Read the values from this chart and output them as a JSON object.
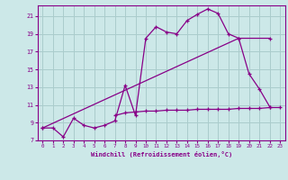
{
  "background_color": "#cce8e8",
  "grid_color": "#aacccc",
  "line_color": "#880088",
  "xlabel": "Windchill (Refroidissement éolien,°C)",
  "xlim": [
    -0.5,
    23.5
  ],
  "ylim": [
    7,
    22.2
  ],
  "yticks": [
    7,
    9,
    11,
    13,
    15,
    17,
    19,
    21
  ],
  "xticks": [
    0,
    1,
    2,
    3,
    4,
    5,
    6,
    7,
    8,
    9,
    10,
    11,
    12,
    13,
    14,
    15,
    16,
    17,
    18,
    19,
    20,
    21,
    22,
    23
  ],
  "curve1_x": [
    0,
    1,
    2,
    3,
    4,
    5,
    6,
    7,
    8,
    9,
    10,
    11,
    12,
    13,
    14,
    15,
    16,
    17,
    18,
    19,
    20,
    21,
    22
  ],
  "curve1_y": [
    8.4,
    8.4,
    7.4,
    9.5,
    8.7,
    8.4,
    8.7,
    9.2,
    13.2,
    9.8,
    18.5,
    19.8,
    19.2,
    19.0,
    20.5,
    21.2,
    21.8,
    21.3,
    19.0,
    18.5,
    14.5,
    12.8,
    10.8
  ],
  "curve2_x": [
    0,
    19,
    22
  ],
  "curve2_y": [
    8.4,
    18.5,
    18.5
  ],
  "curve3_x": [
    7,
    8,
    9,
    10,
    11,
    12,
    13,
    14,
    15,
    16,
    17,
    18,
    19,
    20,
    21,
    22,
    23
  ],
  "curve3_y": [
    9.8,
    10.1,
    10.2,
    10.3,
    10.3,
    10.4,
    10.4,
    10.4,
    10.5,
    10.5,
    10.5,
    10.5,
    10.6,
    10.6,
    10.6,
    10.7,
    10.7
  ]
}
